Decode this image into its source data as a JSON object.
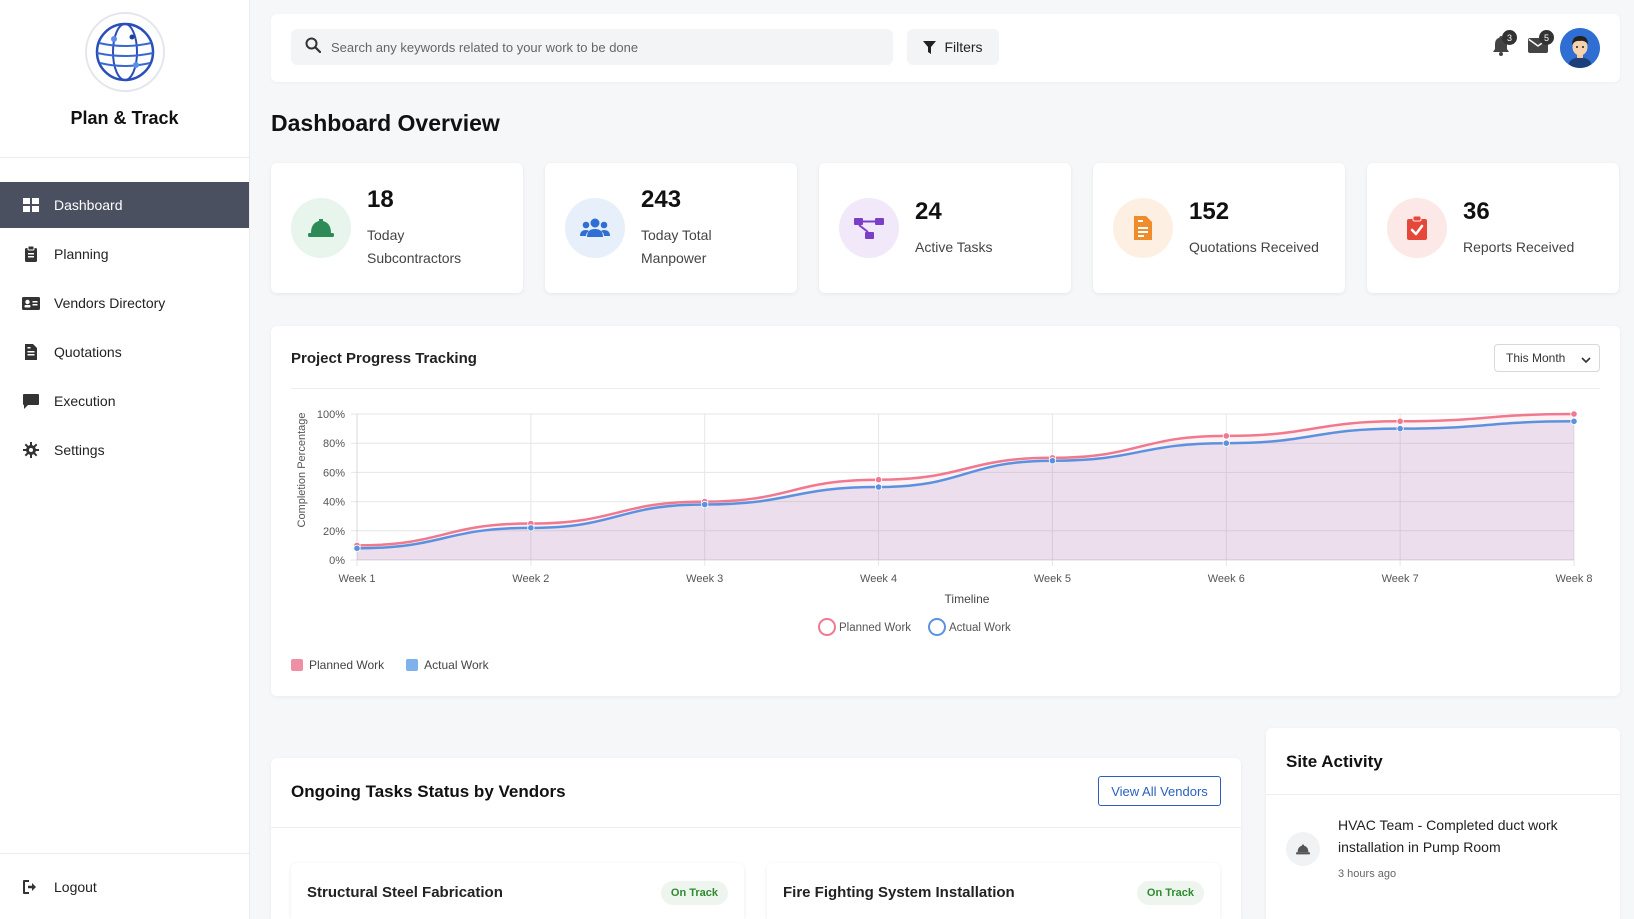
{
  "app": {
    "name": "Plan & Track"
  },
  "sidebar": {
    "items": [
      {
        "label": "Dashboard",
        "icon": "grid-icon",
        "active": true
      },
      {
        "label": "Planning",
        "icon": "clipboard-icon"
      },
      {
        "label": "Vendors Directory",
        "icon": "id-card-icon"
      },
      {
        "label": "Quotations",
        "icon": "document-icon"
      },
      {
        "label": "Execution",
        "icon": "comment-icon"
      },
      {
        "label": "Settings",
        "icon": "gear-icon"
      }
    ],
    "logout_label": "Logout"
  },
  "header": {
    "search_placeholder": "Search any keywords related to your work to be done",
    "filters_label": "Filters",
    "notifications_count": "3",
    "messages_count": "5"
  },
  "page": {
    "title": "Dashboard Overview"
  },
  "stats": [
    {
      "value": "18",
      "label": "Today Subcontractors",
      "icon": "hardhat-icon",
      "color": "#2e8b57",
      "bg": "#e8f5ec"
    },
    {
      "value": "243",
      "label": "Today Total Manpower",
      "icon": "users-icon",
      "color": "#2f6fd3",
      "bg": "#e7effb"
    },
    {
      "value": "24",
      "label": "Active Tasks",
      "icon": "sitemap-icon",
      "color": "#7b3fc6",
      "bg": "#f1e9fa"
    },
    {
      "value": "152",
      "label": "Quotations Received",
      "icon": "invoice-icon",
      "color": "#ef8c2c",
      "bg": "#fdf0e3"
    },
    {
      "value": "36",
      "label": "Reports Received",
      "icon": "clipboard-check-icon",
      "color": "#e5483a",
      "bg": "#fce9e7"
    }
  ],
  "progress": {
    "title": "Project Progress Tracking",
    "period": "This Month"
  },
  "chart_data": {
    "type": "line",
    "categories": [
      "Week 1",
      "Week 2",
      "Week 3",
      "Week 4",
      "Week 5",
      "Week 6",
      "Week 7",
      "Week 8"
    ],
    "series": [
      {
        "name": "Planned Work",
        "values": [
          10,
          25,
          40,
          55,
          70,
          85,
          95,
          100
        ],
        "color": "#f0788f"
      },
      {
        "name": "Actual Work",
        "values": [
          8,
          22,
          38,
          50,
          68,
          80,
          90,
          95
        ],
        "color": "#5b92e0"
      }
    ],
    "xlabel": "Timeline",
    "ylabel": "Completion Percentage",
    "ylim": [
      0,
      100
    ],
    "yticks": [
      "0%",
      "20%",
      "40%",
      "60%",
      "80%",
      "100%"
    ],
    "grid": true,
    "legend": "bottom"
  },
  "vendors": {
    "title": "Ongoing Tasks Status by Vendors",
    "view_all_label": "View All Vendors",
    "tasks": [
      {
        "name": "Structural Steel Fabrication",
        "status": "On Track"
      },
      {
        "name": "Fire Fighting System Installation",
        "status": "On Track"
      }
    ]
  },
  "activity": {
    "title": "Site Activity",
    "items": [
      {
        "text": "HVAC Team - Completed duct work installation in Pump Room",
        "time": "3 hours ago",
        "icon": "hardhat-icon"
      }
    ]
  }
}
